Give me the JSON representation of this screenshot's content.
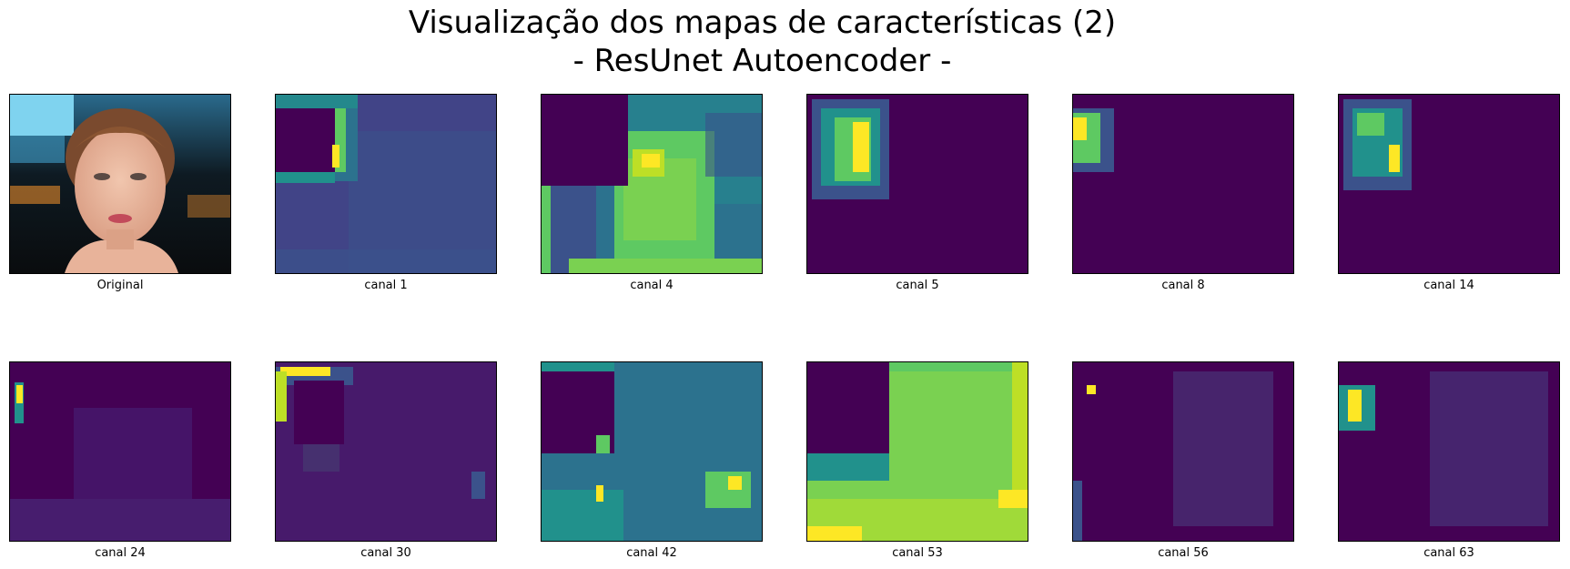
{
  "title_line1": "Visualização dos mapas de características (2)",
  "title_line2": "- ResUnet Autoencoder -",
  "colormap": [
    "#440154",
    "#3b528b",
    "#21918c",
    "#5ec962",
    "#fde725"
  ],
  "panels": [
    {
      "label": "Original"
    },
    {
      "label": "canal 1"
    },
    {
      "label": "canal 4"
    },
    {
      "label": "canal 5"
    },
    {
      "label": "canal 8"
    },
    {
      "label": "canal 14"
    },
    {
      "label": "canal 24"
    },
    {
      "label": "canal 30"
    },
    {
      "label": "canal 42"
    },
    {
      "label": "canal 53"
    },
    {
      "label": "canal 56"
    },
    {
      "label": "canal 63"
    }
  ]
}
